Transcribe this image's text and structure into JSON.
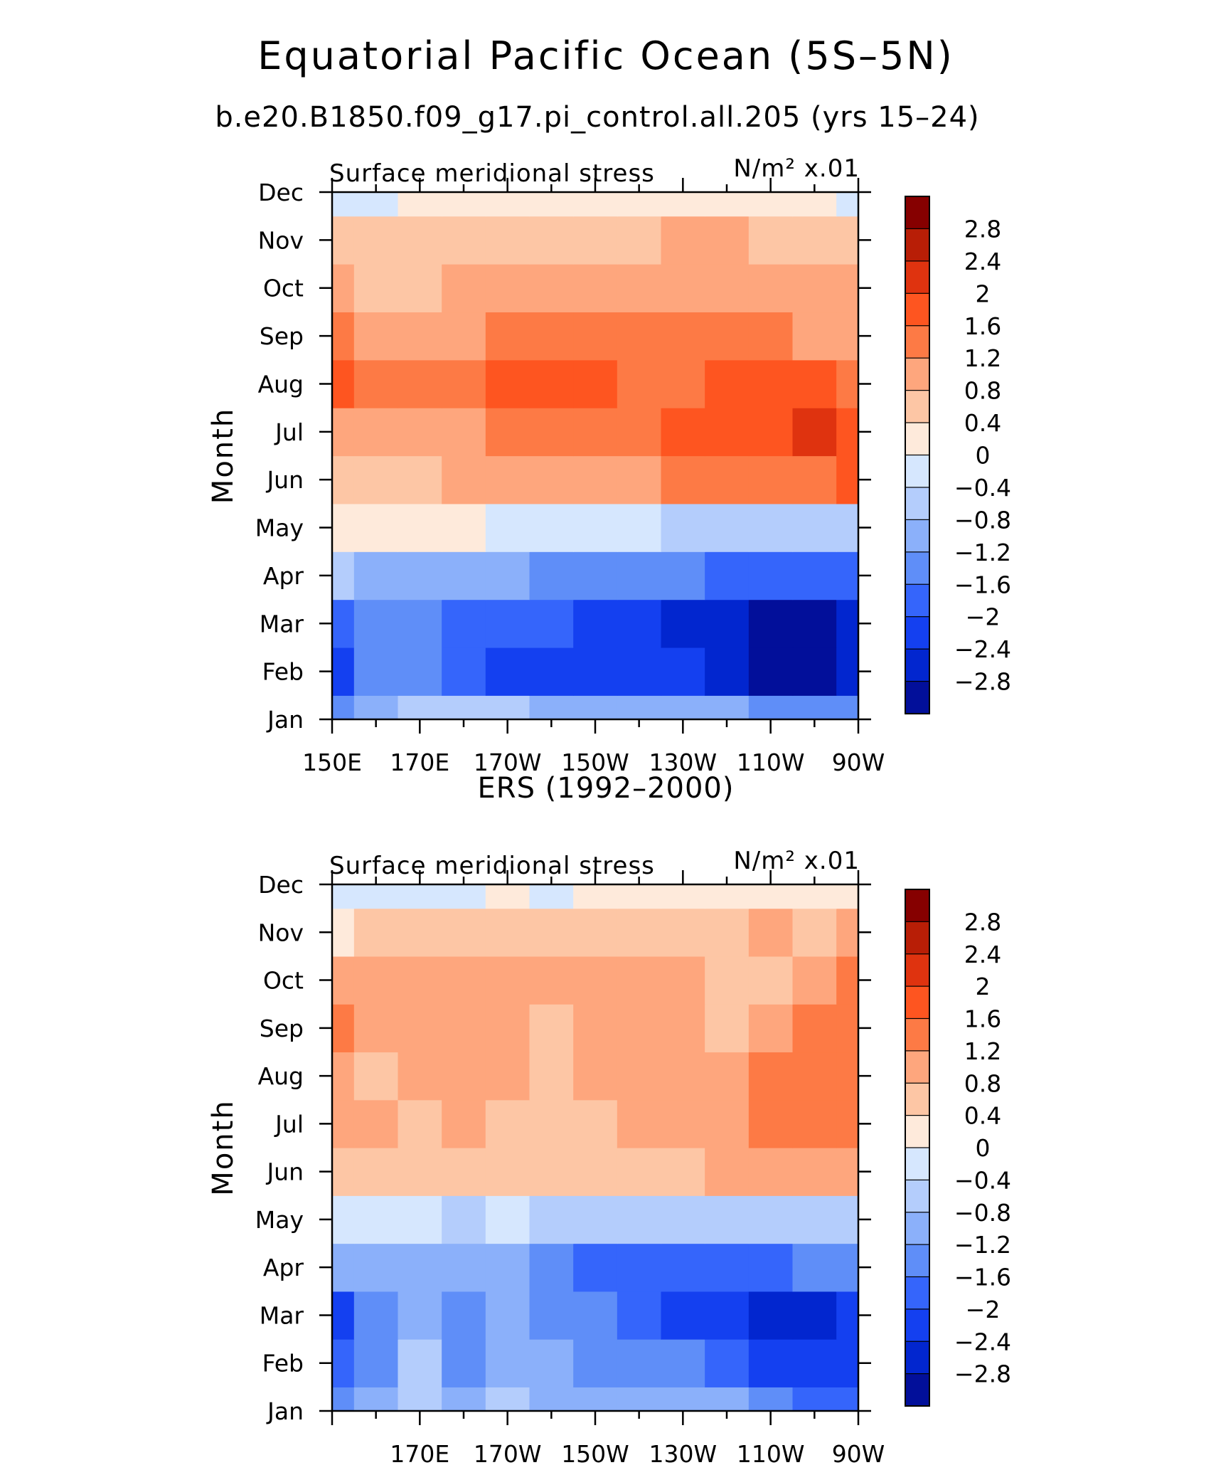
{
  "figure": {
    "title": "Equatorial Pacific Ocean (5S–5N)",
    "subtitle": "b.e20.B1850.f09_g17.pi_control.all.205 (yrs 15–24)"
  },
  "chart_data": [
    {
      "type": "heatmap",
      "panel_title": "",
      "variable_label": "Surface meridional stress",
      "units_label": "N/m² x.01",
      "ylabel": "Month",
      "x_ticks": [
        "150E",
        "170E",
        "170W",
        "150W",
        "130W",
        "110W",
        "90W"
      ],
      "y_ticks": [
        "Jan",
        "Feb",
        "Mar",
        "Apr",
        "May",
        "Jun",
        "Jul",
        "Aug",
        "Sep",
        "Oct",
        "Nov",
        "Dec"
      ],
      "x_values_deg_east": [
        150,
        160,
        170,
        180,
        190,
        200,
        210,
        220,
        230,
        240,
        250,
        260,
        270
      ],
      "xlim": [
        150,
        270
      ],
      "ylim": [
        "Jan",
        "Dec"
      ],
      "levels": [
        -2.8,
        -2.4,
        -2.0,
        -1.6,
        -1.2,
        -0.8,
        -0.4,
        0,
        0.4,
        0.8,
        1.2,
        1.6,
        2.0,
        2.4,
        2.8
      ],
      "values": [
        [
          -1.6,
          -0.9,
          -0.8,
          -0.8,
          -0.8,
          -0.9,
          -1.0,
          -1.0,
          -1.1,
          -1.2,
          -1.4,
          -1.5,
          -1.6
        ],
        [
          -2.1,
          -1.6,
          -1.5,
          -1.8,
          -2.1,
          -2.1,
          -2.1,
          -2.1,
          -2.2,
          -2.5,
          -2.9,
          -2.9,
          -2.5
        ],
        [
          -1.7,
          -1.6,
          -1.6,
          -1.7,
          -1.8,
          -2.0,
          -2.1,
          -2.1,
          -2.5,
          -2.8,
          -3.0,
          -3.0,
          -2.6
        ],
        [
          -0.7,
          -0.9,
          -1.0,
          -1.1,
          -1.2,
          -1.4,
          -1.5,
          -1.5,
          -1.6,
          -1.7,
          -1.8,
          -1.9,
          -1.9
        ],
        [
          0.2,
          0.2,
          0.1,
          0.0,
          -0.2,
          -0.3,
          -0.4,
          -0.4,
          -0.5,
          -0.5,
          -0.6,
          -0.7,
          -0.8
        ],
        [
          0.5,
          0.6,
          0.6,
          0.8,
          0.9,
          1.0,
          1.1,
          1.1,
          1.2,
          1.3,
          1.4,
          1.5,
          1.6
        ],
        [
          1.1,
          0.8,
          0.8,
          1.0,
          1.2,
          1.4,
          1.5,
          1.5,
          1.7,
          1.8,
          1.9,
          2.0,
          1.9
        ],
        [
          1.9,
          1.3,
          1.2,
          1.4,
          1.6,
          1.8,
          1.7,
          1.5,
          1.5,
          1.7,
          1.8,
          1.7,
          1.2
        ],
        [
          1.4,
          0.9,
          0.8,
          1.0,
          1.3,
          1.4,
          1.4,
          1.4,
          1.3,
          1.3,
          1.3,
          1.1,
          0.8
        ],
        [
          0.9,
          0.7,
          0.7,
          0.8,
          1.0,
          1.1,
          1.1,
          1.0,
          1.0,
          1.0,
          0.9,
          0.9,
          0.8
        ],
        [
          0.5,
          0.4,
          0.4,
          0.5,
          0.6,
          0.6,
          0.6,
          0.6,
          0.8,
          0.9,
          0.7,
          0.6,
          0.5
        ],
        [
          -0.2,
          -0.1,
          0.1,
          0.2,
          0.2,
          0.2,
          0.2,
          0.2,
          0.3,
          0.3,
          0.2,
          0.0,
          -0.1
        ]
      ]
    },
    {
      "type": "heatmap",
      "panel_title": "ERS (1992–2000)",
      "variable_label": "Surface meridional stress",
      "units_label": "N/m² x.01",
      "ylabel": "Month",
      "x_ticks": [
        "170E",
        "170W",
        "150W",
        "130W",
        "110W",
        "90W"
      ],
      "y_ticks": [
        "Jan",
        "Feb",
        "Mar",
        "Apr",
        "May",
        "Jun",
        "Jul",
        "Aug",
        "Sep",
        "Oct",
        "Nov",
        "Dec"
      ],
      "x_values_deg_east": [
        150,
        160,
        170,
        180,
        190,
        200,
        210,
        220,
        230,
        240,
        250,
        260,
        270
      ],
      "xlim": [
        150,
        270
      ],
      "ylim": [
        "Jan",
        "Dec"
      ],
      "levels": [
        -2.8,
        -2.4,
        -2.0,
        -1.6,
        -1.2,
        -0.8,
        -0.4,
        0,
        0.4,
        0.8,
        1.2,
        1.6,
        2.0,
        2.4,
        2.8
      ],
      "values": [
        [
          -1.3,
          -1.1,
          -0.8,
          -1.0,
          -0.7,
          -0.9,
          -1.0,
          -1.1,
          -1.1,
          -1.2,
          -1.6,
          -1.8,
          -1.9
        ],
        [
          -1.8,
          -1.3,
          -0.8,
          -1.3,
          -0.9,
          -1.2,
          -1.4,
          -1.5,
          -1.6,
          -2.0,
          -2.2,
          -2.3,
          -2.4
        ],
        [
          -2.1,
          -1.6,
          -0.9,
          -1.3,
          -1.0,
          -1.4,
          -1.6,
          -1.9,
          -2.1,
          -2.4,
          -2.6,
          -2.7,
          -2.4
        ],
        [
          -1.0,
          -1.0,
          -0.9,
          -1.0,
          -1.2,
          -1.5,
          -1.7,
          -1.8,
          -1.8,
          -1.9,
          -1.9,
          -1.6,
          -1.5
        ],
        [
          -0.1,
          -0.3,
          -0.4,
          -0.5,
          -0.4,
          -0.6,
          -0.6,
          -0.7,
          -0.6,
          -0.6,
          -0.7,
          -0.8,
          -0.8
        ],
        [
          0.6,
          0.6,
          0.4,
          0.6,
          0.5,
          0.5,
          0.4,
          0.5,
          0.6,
          0.8,
          1.0,
          1.1,
          1.0
        ],
        [
          0.8,
          0.9,
          0.7,
          0.9,
          0.7,
          0.5,
          0.7,
          0.8,
          0.8,
          1.0,
          1.3,
          1.5,
          1.3
        ],
        [
          1.0,
          0.7,
          0.9,
          1.1,
          0.9,
          0.6,
          0.9,
          1.0,
          0.9,
          0.8,
          1.2,
          1.4,
          1.4
        ],
        [
          1.2,
          0.9,
          0.8,
          1.0,
          1.1,
          0.7,
          1.0,
          1.1,
          1.0,
          0.7,
          0.9,
          1.2,
          1.4
        ],
        [
          0.9,
          0.9,
          0.8,
          0.9,
          1.1,
          0.9,
          0.9,
          1.0,
          1.0,
          0.6,
          0.6,
          0.9,
          1.2
        ],
        [
          0.3,
          0.5,
          0.6,
          0.5,
          0.4,
          0.5,
          0.6,
          0.6,
          0.5,
          0.4,
          0.9,
          0.7,
          0.9
        ],
        [
          -0.3,
          -0.1,
          -0.4,
          -0.2,
          0.1,
          -0.1,
          0.1,
          0.1,
          0.2,
          0.3,
          0.2,
          0.2,
          0.1
        ]
      ]
    }
  ],
  "colorbar": {
    "labels": [
      "2.8",
      "2.4",
      "2",
      "1.6",
      "1.2",
      "0.8",
      "0.4",
      "0",
      "−0.4",
      "−0.8",
      "−1.2",
      "−1.6",
      "−2",
      "−2.4",
      "−2.8"
    ],
    "colors": [
      "#860000",
      "#b81e06",
      "#df330f",
      "#fe5520",
      "#fd7a45",
      "#fea67d",
      "#fdc6a5",
      "#feeadb",
      "#d6e7fe",
      "#b4cdfc",
      "#8bb0fa",
      "#5f8ef8",
      "#3565fb",
      "#1440f0",
      "#0226cf",
      "#020f9a"
    ]
  }
}
